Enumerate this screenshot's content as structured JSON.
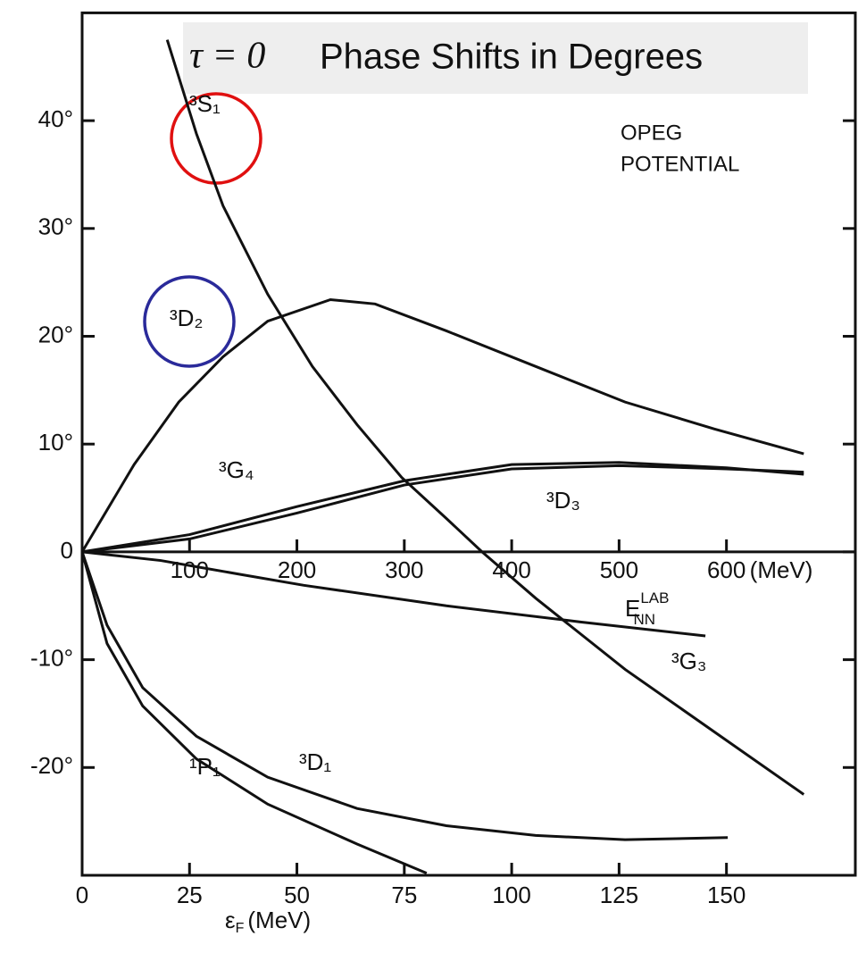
{
  "chart_data": {
    "type": "line",
    "title_math": "τ = 0",
    "title": "Phase Shifts in Degrees",
    "annotation": [
      "OPEG",
      "POTENTIAL"
    ],
    "x_label": {
      "main": "ε",
      "sub": "F",
      "unit": "(MeV)"
    },
    "x2_label": {
      "main": "E",
      "sub": "NN",
      "sup": "LAB"
    },
    "x2_unit": "(MeV)",
    "xlim": [
      0,
      180
    ],
    "xticks": [
      0,
      25,
      50,
      75,
      100,
      125,
      150
    ],
    "x2lim": [
      0,
      720
    ],
    "x2ticks": [
      100,
      200,
      300,
      400,
      500,
      600
    ],
    "ylim": [
      -30,
      50
    ],
    "yticks": [
      {
        "value": -20,
        "label": "-20°"
      },
      {
        "value": -10,
        "label": "-10°"
      },
      0,
      {
        "value": 10,
        "label": "10°"
      },
      {
        "value": 20,
        "label": "20°"
      },
      {
        "value": 30,
        "label": "30°"
      },
      {
        "value": 40,
        "label": "40°"
      }
    ],
    "series": [
      {
        "name": "³S₁",
        "color": "#111111",
        "x": [
          19.8,
          26.6,
          32.8,
          43.2,
          53.6,
          64.0,
          74.4,
          84.8,
          93.1,
          105.6,
          126.4,
          147.2,
          168.0
        ],
        "values": [
          47.5,
          38.8,
          32.1,
          23.9,
          17.2,
          11.8,
          6.9,
          3.1,
          0,
          -4.3,
          -10.9,
          -16.7,
          -22.5
        ]
      },
      {
        "name": "³D₂",
        "color": "#111111",
        "x": [
          0,
          12.1,
          22.5,
          32.8,
          43.2,
          57.8,
          68.2,
          84.8,
          105.6,
          126.4,
          147.2,
          168.0
        ],
        "values": [
          0,
          8.1,
          13.9,
          18.1,
          21.4,
          23.4,
          23.0,
          20.5,
          17.2,
          13.9,
          11.4,
          9.1
        ]
      },
      {
        "name": "³G₄",
        "color": "#111111",
        "x": [
          0,
          25,
          50,
          75,
          100,
          125,
          150,
          168
        ],
        "values": [
          0,
          1.6,
          4.2,
          6.6,
          8.1,
          8.3,
          7.8,
          7.2
        ]
      },
      {
        "name": "³D₃",
        "color": "#111111",
        "x": [
          0,
          25,
          50,
          75,
          100,
          125,
          150,
          168
        ],
        "values": [
          0,
          1.2,
          3.6,
          6.2,
          7.7,
          8.0,
          7.7,
          7.4
        ]
      },
      {
        "name": "³G₃",
        "color": "#111111",
        "x": [
          0,
          18.3,
          37.0,
          51.6,
          84.8,
          116.0,
          145.1
        ],
        "values": [
          0,
          -0.8,
          -2.1,
          -3.1,
          -5.0,
          -6.5,
          -7.8
        ]
      },
      {
        "name": "¹P₁",
        "color": "#111111",
        "x": [
          0,
          5.8,
          14.1,
          26.6,
          43.2,
          64.0,
          80.2
        ],
        "values": [
          0,
          -8.5,
          -14.3,
          -19.2,
          -23.4,
          -27.1,
          -29.8
        ]
      },
      {
        "name": "³D₁",
        "color": "#111111",
        "x": [
          0,
          5.8,
          14.1,
          26.6,
          43.2,
          64.0,
          84.8,
          105.6,
          126.4,
          150.3
        ],
        "values": [
          0,
          -6.8,
          -12.6,
          -17.1,
          -20.9,
          -23.8,
          -25.4,
          -26.3,
          -26.7,
          -26.5
        ]
      }
    ]
  }
}
